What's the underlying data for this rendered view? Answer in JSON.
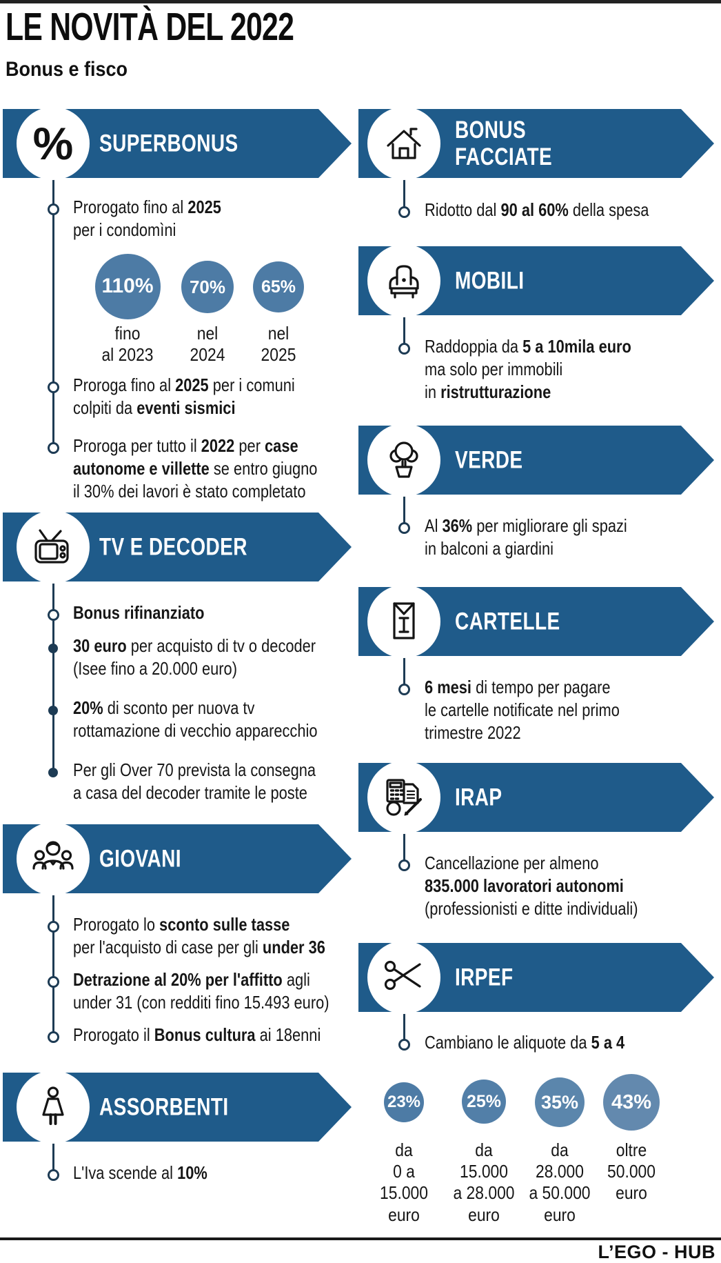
{
  "header": {
    "title": "LE NOVITÀ DEL 2022",
    "subtitle": "Bonus e fisco"
  },
  "footer": {
    "credit": "L’EGO - HUB"
  },
  "colors": {
    "banner_blue": "#1f5b8a",
    "bubble_blue": "#4d7ba5",
    "timeline": "#1d3b54",
    "text": "#161616"
  },
  "sections": {
    "left": [
      {
        "id": "superbonus",
        "title": "SUPERBONUS",
        "icon": "percent-icon",
        "blocks": [
          {
            "type": "item",
            "bullet": "open",
            "segments": [
              {
                "t": "Prorogato fino al "
              },
              {
                "t": "2025",
                "b": true
              },
              {
                "t": "\nper i condomìni"
              }
            ]
          },
          {
            "type": "bubbles",
            "bubbles": [
              {
                "value": "110%",
                "label": "fino\nal 2023",
                "color": "#4d7ba5"
              },
              {
                "value": "70%",
                "label": "nel\n2024",
                "color": "#4d7ba5"
              },
              {
                "value": "65%",
                "label": "nel\n2025",
                "color": "#4d7ba5"
              }
            ]
          },
          {
            "type": "item",
            "bullet": "open",
            "segments": [
              {
                "t": "Proroga fino al "
              },
              {
                "t": "2025",
                "b": true
              },
              {
                "t": " per i comuni\ncolpiti da "
              },
              {
                "t": "eventi sismici",
                "b": true
              }
            ]
          },
          {
            "type": "item",
            "bullet": "open",
            "segments": [
              {
                "t": "Proroga per tutto il "
              },
              {
                "t": "2022",
                "b": true
              },
              {
                "t": " per "
              },
              {
                "t": "case\nautonome e villette",
                "b": true
              },
              {
                "t": " se entro giugno\nil 30% dei lavori è stato completato"
              }
            ]
          }
        ]
      },
      {
        "id": "tv",
        "title": "TV E DECODER",
        "icon": "tv-icon",
        "blocks": [
          {
            "type": "item",
            "bullet": "open",
            "segments": [
              {
                "t": "Bonus rifinanziato",
                "b": true
              }
            ]
          },
          {
            "type": "item",
            "bullet": "filled",
            "segments": [
              {
                "t": "30 euro",
                "b": true
              },
              {
                "t": " per acquisto di tv o decoder\n(Isee fino a 20.000 euro)"
              }
            ]
          },
          {
            "type": "item",
            "bullet": "filled",
            "segments": [
              {
                "t": "20%",
                "b": true
              },
              {
                "t": " di sconto per nuova tv\nrottamazione di vecchio apparecchio"
              }
            ]
          },
          {
            "type": "item",
            "bullet": "filled",
            "segments": [
              {
                "t": "Per gli Over 70 prevista la consegna\na casa del decoder tramite le poste"
              }
            ]
          }
        ]
      },
      {
        "id": "giovani",
        "title": "GIOVANI",
        "icon": "youth-group-icon",
        "blocks": [
          {
            "type": "item",
            "bullet": "open",
            "segments": [
              {
                "t": "Prorogato lo "
              },
              {
                "t": "sconto sulle tasse",
                "b": true
              },
              {
                "t": "\nper l'acquisto di case per gli "
              },
              {
                "t": "under 36",
                "b": true
              }
            ]
          },
          {
            "type": "item",
            "bullet": "open",
            "segments": [
              {
                "t": "Detrazione al 20% per l'affitto",
                "b": true
              },
              {
                "t": " agli\nunder 31 (con redditi fino 15.493 euro)"
              }
            ]
          },
          {
            "type": "item",
            "bullet": "open",
            "segments": [
              {
                "t": "Prorogato il "
              },
              {
                "t": "Bonus cultura",
                "b": true
              },
              {
                "t": " ai 18enni"
              }
            ]
          }
        ]
      },
      {
        "id": "assorbenti",
        "title": "ASSORBENTI",
        "icon": "woman-icon",
        "blocks": [
          {
            "type": "item",
            "bullet": "open",
            "segments": [
              {
                "t": "L'Iva scende al "
              },
              {
                "t": "10%",
                "b": true
              }
            ]
          }
        ]
      }
    ],
    "right": [
      {
        "id": "facciate",
        "title": "BONUS\nFACCIATE",
        "icon": "house-icon",
        "blocks": [
          {
            "type": "item",
            "bullet": "open",
            "segments": [
              {
                "t": "Ridotto dal "
              },
              {
                "t": "90 al 60%",
                "b": true
              },
              {
                "t": " della spesa"
              }
            ]
          }
        ]
      },
      {
        "id": "mobili",
        "title": "MOBILI",
        "icon": "armchair-icon",
        "blocks": [
          {
            "type": "item",
            "bullet": "open",
            "segments": [
              {
                "t": "Raddoppia da "
              },
              {
                "t": "5 a 10mila euro",
                "b": true
              },
              {
                "t": "\nma solo per immobili\nin "
              },
              {
                "t": "ristrutturazione",
                "b": true
              }
            ]
          }
        ]
      },
      {
        "id": "verde",
        "title": "VERDE",
        "icon": "tree-icon",
        "blocks": [
          {
            "type": "item",
            "bullet": "open",
            "segments": [
              {
                "t": "Al "
              },
              {
                "t": "36%",
                "b": true
              },
              {
                "t": " per migliorare gli spazi\nin balconi a giardini"
              }
            ]
          }
        ]
      },
      {
        "id": "cartelle",
        "title": "CARTELLE",
        "icon": "envelope-icon",
        "blocks": [
          {
            "type": "item",
            "bullet": "open",
            "segments": [
              {
                "t": "6 mesi",
                "b": true
              },
              {
                "t": " di tempo per pagare\nle cartelle notificate nel primo\ntrimestre 2022"
              }
            ]
          }
        ]
      },
      {
        "id": "irap",
        "title": "IRAP",
        "icon": "calculator-pencil-icon",
        "blocks": [
          {
            "type": "item",
            "bullet": "open",
            "segments": [
              {
                "t": "Cancellazione per almeno\n"
              },
              {
                "t": "835.000 lavoratori autonomi",
                "b": true
              },
              {
                "t": "\n(professionisti e ditte individuali)"
              }
            ]
          }
        ]
      },
      {
        "id": "irpef",
        "title": "IRPEF",
        "icon": "scissors-icon",
        "blocks": [
          {
            "type": "item",
            "bullet": "open",
            "segments": [
              {
                "t": "Cambiano le aliquote da "
              },
              {
                "t": "5 a 4",
                "b": true
              }
            ]
          },
          {
            "type": "bubbles",
            "bubbles": [
              {
                "value": "23%",
                "label": "da\n0 a\n15.000\neuro",
                "color": "#4d7ba5"
              },
              {
                "value": "25%",
                "label": "da\n15.000\na 28.000\neuro",
                "color": "#527fa8"
              },
              {
                "value": "35%",
                "label": "da\n28.000\na 50.000\neuro",
                "color": "#5b86ac"
              },
              {
                "value": "43%",
                "label": "oltre\n50.000\neuro",
                "color": "#6389ae"
              }
            ]
          }
        ]
      }
    ]
  }
}
